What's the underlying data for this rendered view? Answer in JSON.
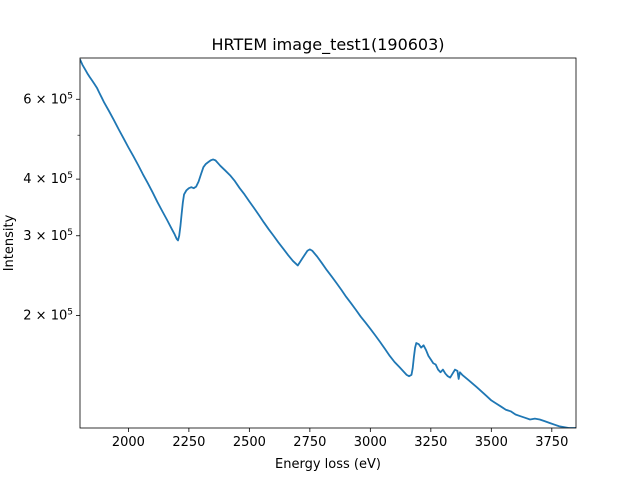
{
  "chart_data": {
    "type": "line",
    "title": "HRTEM image_test1(190603)",
    "xlabel": "Energy loss (eV)",
    "ylabel": "Intensity",
    "xlim": [
      1800,
      3850
    ],
    "ylim": [
      113000,
      740000
    ],
    "yscale": "log",
    "grid": false,
    "line_color": "#1f77b4",
    "xticks": [
      2000,
      2250,
      2500,
      2750,
      3000,
      3250,
      3500,
      3750
    ],
    "xtick_labels": [
      "2000",
      "2250",
      "2500",
      "2750",
      "3000",
      "3250",
      "3500",
      "3750"
    ],
    "yticks": [
      200000,
      300000,
      400000,
      600000
    ],
    "ytick_labels": [
      {
        "base": "2 × 10",
        "exp": "5"
      },
      {
        "base": "3 × 10",
        "exp": "5"
      },
      {
        "base": "4 × 10",
        "exp": "5"
      },
      {
        "base": "6 × 10",
        "exp": "5"
      }
    ],
    "yminor_ticks": [
      500000
    ],
    "series": [
      {
        "x": [
          1800,
          1810,
          1820,
          1830,
          1840,
          1850,
          1860,
          1870,
          1880,
          1890,
          1900,
          1920,
          1940,
          1960,
          1980,
          2000,
          2020,
          2040,
          2060,
          2080,
          2100,
          2120,
          2140,
          2160,
          2180,
          2190,
          2200,
          2205,
          2210,
          2215,
          2220,
          2225,
          2230,
          2240,
          2250,
          2260,
          2270,
          2280,
          2290,
          2300,
          2310,
          2320,
          2330,
          2340,
          2350,
          2360,
          2370,
          2380,
          2400,
          2420,
          2440,
          2460,
          2480,
          2500,
          2520,
          2540,
          2560,
          2580,
          2600,
          2620,
          2640,
          2660,
          2680,
          2700,
          2720,
          2740,
          2750,
          2760,
          2780,
          2800,
          2820,
          2840,
          2860,
          2880,
          2900,
          2920,
          2940,
          2960,
          2980,
          3000,
          3020,
          3040,
          3060,
          3080,
          3100,
          3120,
          3140,
          3150,
          3160,
          3170,
          3175,
          3180,
          3185,
          3190,
          3200,
          3210,
          3220,
          3230,
          3240,
          3250,
          3260,
          3270,
          3280,
          3290,
          3300,
          3310,
          3320,
          3330,
          3340,
          3350,
          3360,
          3365,
          3370,
          3380,
          3400,
          3420,
          3440,
          3460,
          3480,
          3500,
          3520,
          3540,
          3560,
          3580,
          3600,
          3620,
          3640,
          3660,
          3680,
          3700,
          3720,
          3740,
          3760,
          3780,
          3800,
          3820,
          3840,
          3850
        ],
        "y": [
          735000,
          715000,
          700000,
          685000,
          672000,
          660000,
          648000,
          636000,
          620000,
          605000,
          590000,
          565000,
          540000,
          515000,
          492000,
          470000,
          450000,
          430000,
          410000,
          392000,
          374000,
          356000,
          340000,
          325000,
          310000,
          303000,
          295000,
          293000,
          300000,
          315000,
          335000,
          355000,
          370000,
          378000,
          382000,
          384000,
          382000,
          385000,
          395000,
          410000,
          425000,
          432000,
          436000,
          440000,
          442000,
          440000,
          434000,
          428000,
          418000,
          408000,
          396000,
          382000,
          370000,
          357000,
          345000,
          333000,
          321000,
          310000,
          300000,
          290000,
          281000,
          272000,
          264000,
          258000,
          268000,
          278000,
          280000,
          278000,
          270000,
          261000,
          252000,
          244000,
          236000,
          228000,
          220000,
          213000,
          206000,
          199000,
          193000,
          187000,
          181000,
          175000,
          169000,
          163000,
          158000,
          154000,
          150000,
          148000,
          147000,
          148000,
          153000,
          162000,
          170000,
          174000,
          173000,
          170000,
          172000,
          168000,
          163000,
          160000,
          157000,
          156000,
          152000,
          150000,
          152000,
          149000,
          147000,
          146000,
          149000,
          152000,
          151000,
          145000,
          150000,
          148000,
          145000,
          142000,
          139000,
          136000,
          133000,
          130000,
          128000,
          126000,
          124000,
          123000,
          121000,
          120000,
          119000,
          118000,
          118500,
          118000,
          117000,
          116000,
          115000,
          114000,
          113500,
          113000,
          113000,
          113000
        ]
      }
    ]
  }
}
